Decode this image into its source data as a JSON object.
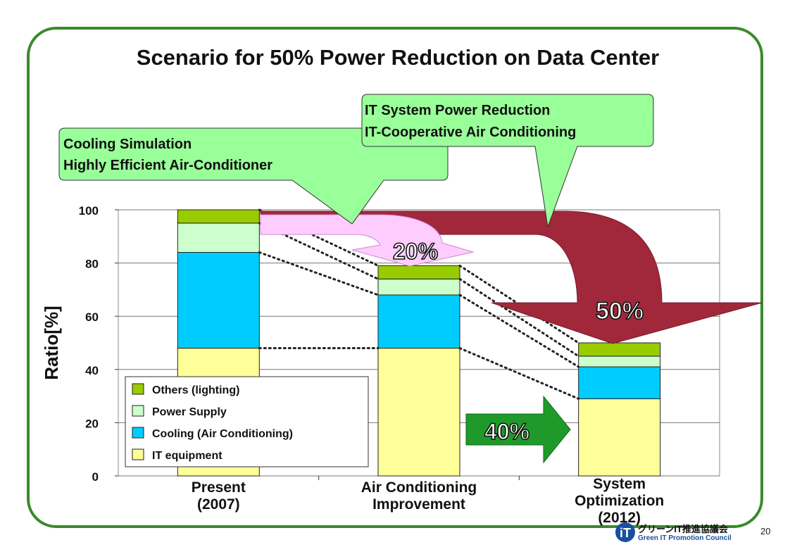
{
  "slide": {
    "title": "Scenario for 50% Power Reduction on Data Center",
    "page_number": "20",
    "logo": {
      "text_ja": "グリーンIT推進協議会",
      "text_en": "Green IT Promotion Council"
    }
  },
  "callouts": {
    "left": {
      "line1": "Cooling Simulation",
      "line2": "Highly Efficient Air-Conditioner",
      "color": "#99ff99"
    },
    "right": {
      "line1": "IT System Power Reduction",
      "line2": "IT-Cooperative Air Conditioning",
      "color": "#99ff99"
    }
  },
  "arrows": {
    "pink": {
      "label": "20%",
      "color": "#ffccff"
    },
    "maroon": {
      "label": "50%",
      "color": "#a0283a"
    },
    "green": {
      "label": "40%",
      "color": "#1f9a2a"
    }
  },
  "chart_data": {
    "type": "bar",
    "stacked": true,
    "categories": [
      [
        "Present",
        "(2007)"
      ],
      [
        "Air Conditioning",
        "Improvement"
      ],
      [
        "System",
        "Optimization",
        "(2012)"
      ]
    ],
    "series": [
      {
        "name": "IT equipment",
        "values": [
          48,
          48,
          29
        ],
        "color": "#ffff99"
      },
      {
        "name": "Cooling (Air Conditioning)",
        "values": [
          36,
          20,
          12
        ],
        "color": "#00ccff"
      },
      {
        "name": "Power Supply",
        "values": [
          11,
          6,
          4
        ],
        "color": "#ccffcc"
      },
      {
        "name": "Others (lighting)",
        "values": [
          5,
          5,
          5
        ],
        "color": "#99cc00"
      }
    ],
    "ylabel": "Ratio[%]",
    "xlabel": "",
    "ylim": [
      0,
      100
    ],
    "yticks": [
      0,
      20,
      40,
      60,
      80,
      100
    ],
    "grid": true,
    "legend_position": "bottom-left"
  }
}
